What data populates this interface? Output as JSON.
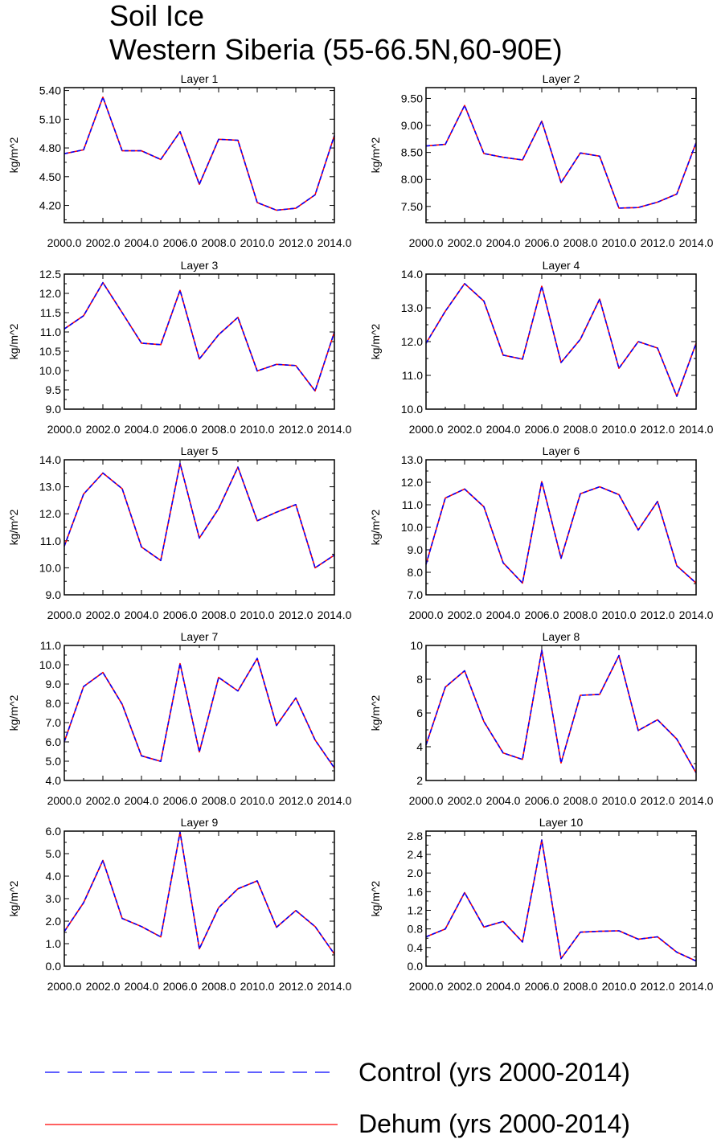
{
  "title_line1": "Soil Ice",
  "title_line2": "Western Siberia (55-66.5N,60-90E)",
  "series_styles": [
    {
      "name": "Control",
      "color": "#0000ff",
      "dash": "dashed"
    },
    {
      "name": "Dehum",
      "color": "#ff0000",
      "dash": "solid"
    }
  ],
  "legend": [
    {
      "label": "Control (yrs 2000-2014)",
      "color": "#0000ff",
      "style": "dashed"
    },
    {
      "label": "Dehum (yrs 2000-2014)",
      "color": "#ff0000",
      "style": "solid"
    }
  ],
  "chart_data": [
    {
      "type": "line",
      "title": "Layer 1",
      "xlabel": "",
      "ylabel": "kg/m^2",
      "x": [
        2000,
        2001,
        2002,
        2003,
        2004,
        2005,
        2006,
        2007,
        2008,
        2009,
        2010,
        2011,
        2012,
        2013,
        2014
      ],
      "xlim": [
        2000,
        2014
      ],
      "xticks": [
        2000,
        2002,
        2004,
        2006,
        2008,
        2010,
        2012,
        2014
      ],
      "xtick_labels": [
        "2000.0",
        "2002.0",
        "2004.0",
        "2006.0",
        "2008.0",
        "2010.0",
        "2012.0",
        "2014.0"
      ],
      "ylim": [
        4.02,
        5.43
      ],
      "yticks": [
        4.2,
        4.5,
        4.8,
        5.1,
        5.4
      ],
      "ytick_labels": [
        "4.20",
        "4.50",
        "4.80",
        "5.10",
        "5.40"
      ],
      "series": [
        {
          "name": "Control",
          "values": [
            4.74,
            4.78,
            5.33,
            4.77,
            4.77,
            4.68,
            4.97,
            4.42,
            4.89,
            4.88,
            4.23,
            4.15,
            4.17,
            4.31,
            4.93
          ]
        },
        {
          "name": "Dehum",
          "values": [
            4.74,
            4.78,
            5.33,
            4.77,
            4.77,
            4.68,
            4.97,
            4.42,
            4.89,
            4.88,
            4.23,
            4.15,
            4.17,
            4.31,
            4.93
          ]
        }
      ]
    },
    {
      "type": "line",
      "title": "Layer 2",
      "xlabel": "",
      "ylabel": "kg/m^2",
      "x": [
        2000,
        2001,
        2002,
        2003,
        2004,
        2005,
        2006,
        2007,
        2008,
        2009,
        2010,
        2011,
        2012,
        2013,
        2014
      ],
      "xlim": [
        2000,
        2014
      ],
      "xticks": [
        2000,
        2002,
        2004,
        2006,
        2008,
        2010,
        2012,
        2014
      ],
      "xtick_labels": [
        "2000.0",
        "2002.0",
        "2004.0",
        "2006.0",
        "2008.0",
        "2010.0",
        "2012.0",
        "2014.0"
      ],
      "ylim": [
        7.2,
        9.7
      ],
      "yticks": [
        7.5,
        8.0,
        8.5,
        9.0,
        9.5
      ],
      "ytick_labels": [
        "7.50",
        "8.00",
        "8.50",
        "9.00",
        "9.50"
      ],
      "series": [
        {
          "name": "Control",
          "values": [
            8.62,
            8.65,
            9.37,
            8.48,
            8.41,
            8.36,
            9.08,
            7.94,
            8.49,
            8.43,
            7.47,
            7.48,
            7.58,
            7.73,
            8.68
          ]
        },
        {
          "name": "Dehum",
          "values": [
            8.62,
            8.65,
            9.37,
            8.48,
            8.41,
            8.36,
            9.08,
            7.94,
            8.49,
            8.43,
            7.47,
            7.48,
            7.58,
            7.73,
            8.68
          ]
        }
      ]
    },
    {
      "type": "line",
      "title": "Layer 3",
      "xlabel": "",
      "ylabel": "kg/m^2",
      "x": [
        2000,
        2001,
        2002,
        2003,
        2004,
        2005,
        2006,
        2007,
        2008,
        2009,
        2010,
        2011,
        2012,
        2013,
        2014
      ],
      "xlim": [
        2000,
        2014
      ],
      "xticks": [
        2000,
        2002,
        2004,
        2006,
        2008,
        2010,
        2012,
        2014
      ],
      "xtick_labels": [
        "2000.0",
        "2002.0",
        "2004.0",
        "2006.0",
        "2008.0",
        "2010.0",
        "2012.0",
        "2014.0"
      ],
      "ylim": [
        9.0,
        12.5
      ],
      "yticks": [
        9.0,
        9.5,
        10.0,
        10.5,
        11.0,
        11.5,
        12.0,
        12.5
      ],
      "ytick_labels": [
        "9.0",
        "9.5",
        "10.0",
        "10.5",
        "11.0",
        "11.5",
        "12.0",
        "12.5"
      ],
      "series": [
        {
          "name": "Control",
          "values": [
            11.08,
            11.42,
            12.28,
            11.5,
            10.71,
            10.67,
            12.08,
            10.3,
            10.93,
            11.38,
            9.99,
            10.16,
            10.13,
            9.47,
            11.0
          ]
        },
        {
          "name": "Dehum",
          "values": [
            11.08,
            11.42,
            12.28,
            11.5,
            10.71,
            10.67,
            12.08,
            10.3,
            10.93,
            11.38,
            9.99,
            10.16,
            10.13,
            9.47,
            11.0
          ]
        }
      ]
    },
    {
      "type": "line",
      "title": "Layer 4",
      "xlabel": "",
      "ylabel": "kg/m^2",
      "x": [
        2000,
        2001,
        2002,
        2003,
        2004,
        2005,
        2006,
        2007,
        2008,
        2009,
        2010,
        2011,
        2012,
        2013,
        2014
      ],
      "xlim": [
        2000,
        2014
      ],
      "xticks": [
        2000,
        2002,
        2004,
        2006,
        2008,
        2010,
        2012,
        2014
      ],
      "xtick_labels": [
        "2000.0",
        "2002.0",
        "2004.0",
        "2006.0",
        "2008.0",
        "2010.0",
        "2012.0",
        "2014.0"
      ],
      "ylim": [
        10.0,
        14.0
      ],
      "yticks": [
        10.0,
        11.0,
        12.0,
        13.0,
        14.0
      ],
      "ytick_labels": [
        "10.0",
        "11.0",
        "12.0",
        "13.0",
        "14.0"
      ],
      "series": [
        {
          "name": "Control",
          "values": [
            11.95,
            12.9,
            13.72,
            13.2,
            11.6,
            11.48,
            13.64,
            11.38,
            12.07,
            13.26,
            11.21,
            12.0,
            11.81,
            10.38,
            11.95
          ]
        },
        {
          "name": "Dehum",
          "values": [
            11.95,
            12.9,
            13.72,
            13.2,
            11.6,
            11.48,
            13.64,
            11.38,
            12.07,
            13.26,
            11.21,
            12.0,
            11.81,
            10.38,
            11.95
          ]
        }
      ]
    },
    {
      "type": "line",
      "title": "Layer 5",
      "xlabel": "",
      "ylabel": "kg/m^2",
      "x": [
        2000,
        2001,
        2002,
        2003,
        2004,
        2005,
        2006,
        2007,
        2008,
        2009,
        2010,
        2011,
        2012,
        2013,
        2014
      ],
      "xlim": [
        2000,
        2014
      ],
      "xticks": [
        2000,
        2002,
        2004,
        2006,
        2008,
        2010,
        2012,
        2014
      ],
      "xtick_labels": [
        "2000.0",
        "2002.0",
        "2004.0",
        "2006.0",
        "2008.0",
        "2010.0",
        "2012.0",
        "2014.0"
      ],
      "ylim": [
        9.0,
        14.0
      ],
      "yticks": [
        9.0,
        10.0,
        11.0,
        12.0,
        13.0,
        14.0
      ],
      "ytick_labels": [
        "9.0",
        "10.0",
        "11.0",
        "12.0",
        "13.0",
        "14.0"
      ],
      "series": [
        {
          "name": "Control",
          "values": [
            10.8,
            12.73,
            13.51,
            12.93,
            10.77,
            10.27,
            13.86,
            11.1,
            12.19,
            13.73,
            11.74,
            12.06,
            12.34,
            10.0,
            10.47
          ]
        },
        {
          "name": "Dehum",
          "values": [
            10.8,
            12.73,
            13.51,
            12.93,
            10.77,
            10.27,
            13.86,
            11.1,
            12.19,
            13.73,
            11.74,
            12.06,
            12.34,
            10.0,
            10.47
          ]
        }
      ]
    },
    {
      "type": "line",
      "title": "Layer 6",
      "xlabel": "",
      "ylabel": "kg/m^2",
      "x": [
        2000,
        2001,
        2002,
        2003,
        2004,
        2005,
        2006,
        2007,
        2008,
        2009,
        2010,
        2011,
        2012,
        2013,
        2014
      ],
      "xlim": [
        2000,
        2014
      ],
      "xticks": [
        2000,
        2002,
        2004,
        2006,
        2008,
        2010,
        2012,
        2014
      ],
      "xtick_labels": [
        "2000.0",
        "2002.0",
        "2004.0",
        "2006.0",
        "2008.0",
        "2010.0",
        "2012.0",
        "2014.0"
      ],
      "ylim": [
        7.0,
        13.0
      ],
      "yticks": [
        7.0,
        8.0,
        9.0,
        10.0,
        11.0,
        12.0,
        13.0
      ],
      "ytick_labels": [
        "7.0",
        "8.0",
        "9.0",
        "10.0",
        "11.0",
        "12.0",
        "13.0"
      ],
      "series": [
        {
          "name": "Control",
          "values": [
            8.35,
            11.3,
            11.7,
            10.91,
            8.42,
            7.52,
            12.03,
            8.62,
            11.49,
            11.8,
            11.45,
            9.88,
            11.15,
            8.29,
            7.52
          ]
        },
        {
          "name": "Dehum",
          "values": [
            8.35,
            11.3,
            11.7,
            10.91,
            8.42,
            7.52,
            12.03,
            8.62,
            11.49,
            11.8,
            11.45,
            9.88,
            11.15,
            8.29,
            7.52
          ]
        }
      ]
    },
    {
      "type": "line",
      "title": "Layer 7",
      "xlabel": "",
      "ylabel": "kg/m^2",
      "x": [
        2000,
        2001,
        2002,
        2003,
        2004,
        2005,
        2006,
        2007,
        2008,
        2009,
        2010,
        2011,
        2012,
        2013,
        2014
      ],
      "xlim": [
        2000,
        2014
      ],
      "xticks": [
        2000,
        2002,
        2004,
        2006,
        2008,
        2010,
        2012,
        2014
      ],
      "xtick_labels": [
        "2000.0",
        "2002.0",
        "2004.0",
        "2006.0",
        "2008.0",
        "2010.0",
        "2012.0",
        "2014.0"
      ],
      "ylim": [
        4.0,
        11.0
      ],
      "yticks": [
        4.0,
        5.0,
        6.0,
        7.0,
        8.0,
        9.0,
        10.0,
        11.0
      ],
      "ytick_labels": [
        "4.0",
        "5.0",
        "6.0",
        "7.0",
        "8.0",
        "9.0",
        "10.0",
        "11.0"
      ],
      "series": [
        {
          "name": "Control",
          "values": [
            6.01,
            8.87,
            9.6,
            7.95,
            5.28,
            4.99,
            10.06,
            5.48,
            9.34,
            8.64,
            10.33,
            6.85,
            8.28,
            6.1,
            4.65
          ]
        },
        {
          "name": "Dehum",
          "values": [
            6.01,
            8.87,
            9.6,
            7.95,
            5.28,
            4.99,
            10.06,
            5.48,
            9.34,
            8.64,
            10.33,
            6.85,
            8.28,
            6.1,
            4.65
          ]
        }
      ]
    },
    {
      "type": "line",
      "title": "Layer 8",
      "xlabel": "",
      "ylabel": "kg/m^2",
      "x": [
        2000,
        2001,
        2002,
        2003,
        2004,
        2005,
        2006,
        2007,
        2008,
        2009,
        2010,
        2011,
        2012,
        2013,
        2014
      ],
      "xlim": [
        2000,
        2014
      ],
      "xticks": [
        2000,
        2002,
        2004,
        2006,
        2008,
        2010,
        2012,
        2014
      ],
      "xtick_labels": [
        "2000.0",
        "2002.0",
        "2004.0",
        "2006.0",
        "2008.0",
        "2010.0",
        "2012.0",
        "2014.0"
      ],
      "ylim": [
        2.0,
        10.0
      ],
      "yticks": [
        2,
        4,
        6,
        8,
        10
      ],
      "ytick_labels": [
        "2",
        "4",
        "6",
        "8",
        "10"
      ],
      "series": [
        {
          "name": "Control",
          "values": [
            4.1,
            7.53,
            8.5,
            5.49,
            3.63,
            3.25,
            9.72,
            3.04,
            7.05,
            7.1,
            9.4,
            4.96,
            5.6,
            4.45,
            2.45
          ]
        },
        {
          "name": "Dehum",
          "values": [
            4.1,
            7.53,
            8.5,
            5.49,
            3.63,
            3.25,
            9.72,
            3.04,
            7.05,
            7.1,
            9.4,
            4.96,
            5.6,
            4.45,
            2.45
          ]
        }
      ]
    },
    {
      "type": "line",
      "title": "Layer 9",
      "xlabel": "",
      "ylabel": "kg/m^2",
      "x": [
        2000,
        2001,
        2002,
        2003,
        2004,
        2005,
        2006,
        2007,
        2008,
        2009,
        2010,
        2011,
        2012,
        2013,
        2014
      ],
      "xlim": [
        2000,
        2014
      ],
      "xticks": [
        2000,
        2002,
        2004,
        2006,
        2008,
        2010,
        2012,
        2014
      ],
      "xtick_labels": [
        "2000.0",
        "2002.0",
        "2004.0",
        "2006.0",
        "2008.0",
        "2010.0",
        "2012.0",
        "2014.0"
      ],
      "ylim": [
        0.0,
        6.0
      ],
      "yticks": [
        0.0,
        1.0,
        2.0,
        3.0,
        4.0,
        5.0,
        6.0
      ],
      "ytick_labels": [
        "0.0",
        "1.0",
        "2.0",
        "3.0",
        "4.0",
        "5.0",
        "6.0"
      ],
      "series": [
        {
          "name": "Control",
          "values": [
            1.54,
            2.82,
            4.7,
            2.12,
            1.76,
            1.3,
            5.95,
            0.77,
            2.6,
            3.44,
            3.79,
            1.73,
            2.47,
            1.76,
            0.54
          ]
        },
        {
          "name": "Dehum",
          "values": [
            1.54,
            2.82,
            4.7,
            2.12,
            1.76,
            1.3,
            5.95,
            0.77,
            2.6,
            3.44,
            3.79,
            1.73,
            2.47,
            1.76,
            0.54
          ]
        }
      ]
    },
    {
      "type": "line",
      "title": "Layer 10",
      "xlabel": "",
      "ylabel": "kg/m^2",
      "x": [
        2000,
        2001,
        2002,
        2003,
        2004,
        2005,
        2006,
        2007,
        2008,
        2009,
        2010,
        2011,
        2012,
        2013,
        2014
      ],
      "xlim": [
        2000,
        2014
      ],
      "xticks": [
        2000,
        2002,
        2004,
        2006,
        2008,
        2010,
        2012,
        2014
      ],
      "xtick_labels": [
        "2000.0",
        "2002.0",
        "2004.0",
        "2006.0",
        "2008.0",
        "2010.0",
        "2012.0",
        "2014.0"
      ],
      "ylim": [
        0.0,
        2.9
      ],
      "yticks": [
        0.0,
        0.4,
        0.8,
        1.2,
        1.6,
        2.0,
        2.4,
        2.8
      ],
      "ytick_labels": [
        "0.0",
        "0.4",
        "0.8",
        "1.2",
        "1.6",
        "2.0",
        "2.4",
        "2.8"
      ],
      "series": [
        {
          "name": "Control",
          "values": [
            0.63,
            0.8,
            1.58,
            0.84,
            0.96,
            0.52,
            2.71,
            0.16,
            0.73,
            0.75,
            0.76,
            0.58,
            0.63,
            0.3,
            0.11
          ]
        },
        {
          "name": "Dehum",
          "values": [
            0.63,
            0.8,
            1.58,
            0.84,
            0.96,
            0.52,
            2.71,
            0.16,
            0.73,
            0.75,
            0.76,
            0.58,
            0.63,
            0.3,
            0.11
          ]
        }
      ]
    }
  ]
}
